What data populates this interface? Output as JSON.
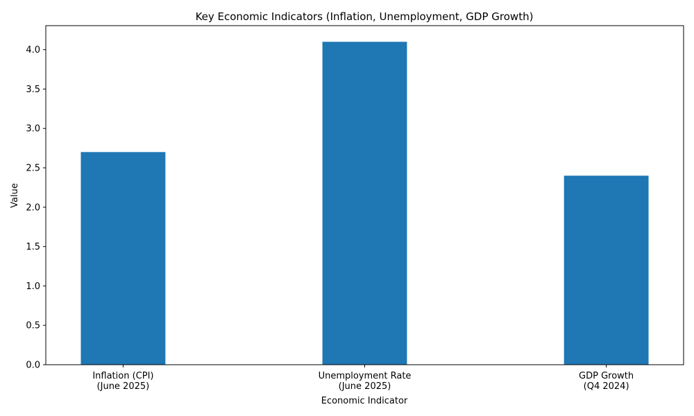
{
  "colors": {
    "bar": "#1f77b4",
    "axis": "#000000",
    "background": "#ffffff"
  },
  "chart_data": {
    "type": "bar",
    "title": "Key Economic Indicators (Inflation, Unemployment, GDP Growth)",
    "xlabel": "Economic Indicator",
    "ylabel": "Value",
    "categories": [
      [
        "Inflation (CPI)",
        "(June 2025)"
      ],
      [
        "Unemployment Rate",
        "(June 2025)"
      ],
      [
        "GDP Growth",
        "(Q4 2024)"
      ]
    ],
    "values": [
      2.7,
      4.1,
      2.4
    ],
    "ylim": [
      0,
      4.305
    ],
    "yticks": [
      "0.0",
      "0.5",
      "1.0",
      "1.5",
      "2.0",
      "2.5",
      "3.0",
      "3.5",
      "4.0"
    ],
    "grid": false,
    "legend": "none"
  }
}
